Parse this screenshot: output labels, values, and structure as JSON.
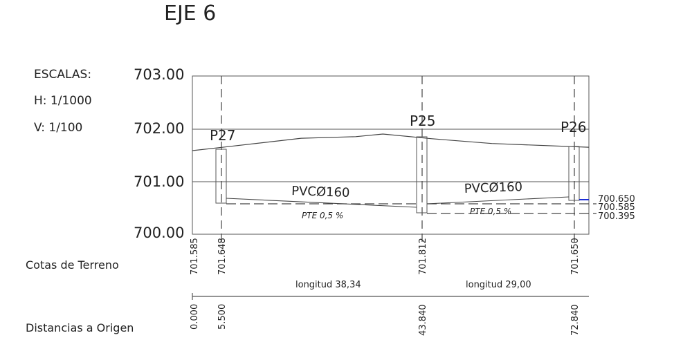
{
  "title": "EJE 6",
  "scales": {
    "heading": "ESCALAS:",
    "horizontal": "H: 1/1000",
    "vertical": "V: 1/100"
  },
  "y_axis_labels": [
    "703.00",
    "702.00",
    "701.00",
    "700.00"
  ],
  "rows": {
    "terrain_label": "Cotas de Terreno",
    "distance_label": "Distancias a Origen"
  },
  "wells": [
    {
      "name": "P27",
      "terrain": "701.648",
      "distance": "5.500"
    },
    {
      "name": "P25",
      "terrain": "701.812",
      "distance": "43.840"
    },
    {
      "name": "P26",
      "terrain": "701.650",
      "distance": "72.840"
    }
  ],
  "origin": {
    "terrain": "701.585",
    "distance": "0.000"
  },
  "pipes": [
    {
      "label": "PVCØ160",
      "slope": "PTE 0,5 %",
      "length": "longitud 38,34"
    },
    {
      "label": "PVCØ160",
      "slope": "PTE 0,5 %",
      "length": "longitud 29,00"
    }
  ],
  "right_levels": [
    "700.650",
    "700.585",
    "700.395"
  ],
  "colors": {
    "line": "#555555",
    "accent": "#1a2bd6"
  },
  "chart_data": {
    "type": "line",
    "xlabel": "Distancias a Origen",
    "ylim": [
      700.0,
      703.0
    ],
    "xlim": [
      0,
      72.84
    ],
    "series": [
      {
        "x": [
          0,
          5.5,
          20,
          30,
          35,
          43.84,
          55,
          72.84
        ],
        "y": [
          701.585,
          701.648,
          701.82,
          701.85,
          701.9,
          701.812,
          701.72,
          701.65
        ]
      }
    ]
  }
}
